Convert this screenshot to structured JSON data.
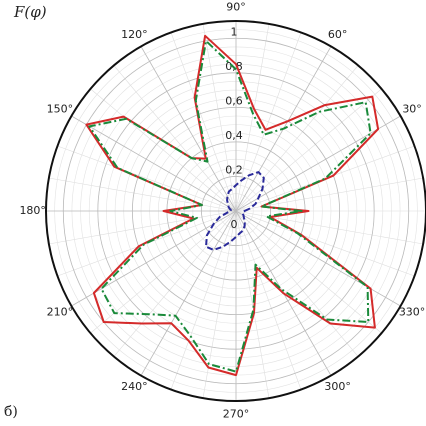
{
  "chart_data": {
    "type": "polar",
    "title": "F(φ)",
    "subtitle": "б)",
    "x": [
      0,
      10,
      20,
      30,
      40,
      50,
      60,
      70,
      80,
      90,
      100,
      110,
      120,
      130,
      140,
      150,
      160,
      170,
      180,
      190,
      200,
      210,
      220,
      230,
      240,
      250,
      260,
      270,
      280,
      290,
      300,
      310,
      320,
      330,
      340,
      350
    ],
    "series": [
      {
        "color": "#d42a2a",
        "dash": "solid",
        "values": [
          0.42,
          0.15,
          0.6,
          0.95,
          1.03,
          0.8,
          0.6,
          0.5,
          0.6,
          0.85,
          1.03,
          0.7,
          0.35,
          0.4,
          0.85,
          1.0,
          0.75,
          0.2,
          0.42,
          0.25,
          0.6,
          0.95,
          1.0,
          0.85,
          0.75,
          0.8,
          0.92,
          0.95,
          0.6,
          0.35,
          0.55,
          0.85,
          1.05,
          0.9,
          0.4,
          0.2
        ]
      },
      {
        "color": "#1a8a3a",
        "dash": "dashdot",
        "values": [
          0.38,
          0.15,
          0.55,
          0.9,
          0.98,
          0.75,
          0.55,
          0.47,
          0.57,
          0.82,
          1.0,
          0.68,
          0.33,
          0.4,
          0.83,
          0.98,
          0.73,
          0.2,
          0.38,
          0.23,
          0.57,
          0.9,
          0.92,
          0.78,
          0.7,
          0.77,
          0.9,
          0.93,
          0.58,
          0.33,
          0.52,
          0.82,
          1.0,
          0.88,
          0.38,
          0.18
        ]
      },
      {
        "color": "#2a2a9a",
        "dash": "dashed",
        "values": [
          0.05,
          0.08,
          0.12,
          0.15,
          0.2,
          0.25,
          0.26,
          0.22,
          0.18,
          0.15,
          0.13,
          0.12,
          0.1,
          0.08,
          0.06,
          0.05,
          0.04,
          0.03,
          0.03,
          0.05,
          0.1,
          0.15,
          0.22,
          0.27,
          0.26,
          0.22,
          0.18,
          0.15,
          0.13,
          0.12,
          0.1,
          0.08,
          0.06,
          0.05,
          0.04,
          0.04
        ]
      }
    ],
    "rlim": [
      0,
      1.1
    ],
    "rticks": [
      0,
      {
        "value": 0.2,
        "label": "0,2"
      },
      {
        "value": 0.4,
        "label": "0,4"
      },
      {
        "value": 0.6,
        "label": "0,6"
      },
      {
        "value": 0.8,
        "label": "0,8"
      },
      1
    ],
    "xticks": [
      {
        "value": 30,
        "label": "30°"
      },
      {
        "value": 60,
        "label": "60°"
      },
      {
        "value": 90,
        "label": "90°"
      },
      {
        "value": 120,
        "label": "120°"
      },
      {
        "value": 150,
        "label": "150°"
      },
      {
        "value": 180,
        "label": "180°"
      },
      {
        "value": 210,
        "label": "210°"
      },
      {
        "value": 240,
        "label": "240°"
      },
      {
        "value": 270,
        "label": "270°"
      },
      {
        "value": 300,
        "label": "300°"
      },
      {
        "value": 330,
        "label": "330°"
      }
    ],
    "grid": true
  }
}
